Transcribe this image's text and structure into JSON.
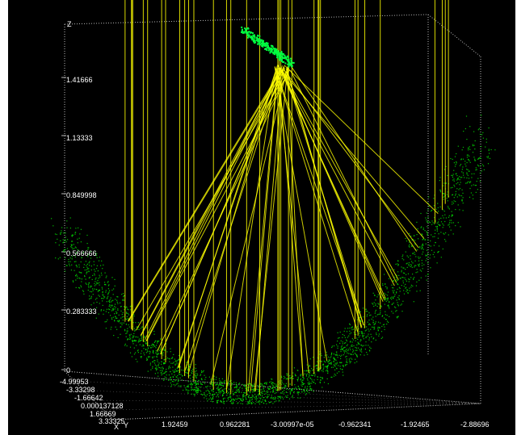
{
  "viewer": {
    "background": "#000000",
    "box_color": "#b8b8b8",
    "ray_color": "#ffff00",
    "point_color": "#00e000",
    "emitter_color": "#00ff40"
  },
  "axes": {
    "z_letter": "Z",
    "x_letter": "X",
    "y_letter": "Y",
    "z_ticks": [
      "1.41666",
      "1.13333",
      "0.849998",
      "0.566666",
      "0.283333",
      "0"
    ],
    "depth_ticks": [
      "-4.99953",
      "-3.33298",
      "-1.66642",
      "0.000137128",
      "1.66669",
      "3.33325"
    ],
    "bottom_ticks": [
      "1.92459",
      "0.962281",
      "-3.00997e-05",
      "-0.962341",
      "-1.92465",
      "-2.88696"
    ]
  },
  "chart_data": {
    "type": "scatter",
    "title": "",
    "surface": "paraboloid",
    "emitter_z": 1.7,
    "rays": {
      "vertical_count": 34,
      "reflected_count": 40
    }
  }
}
